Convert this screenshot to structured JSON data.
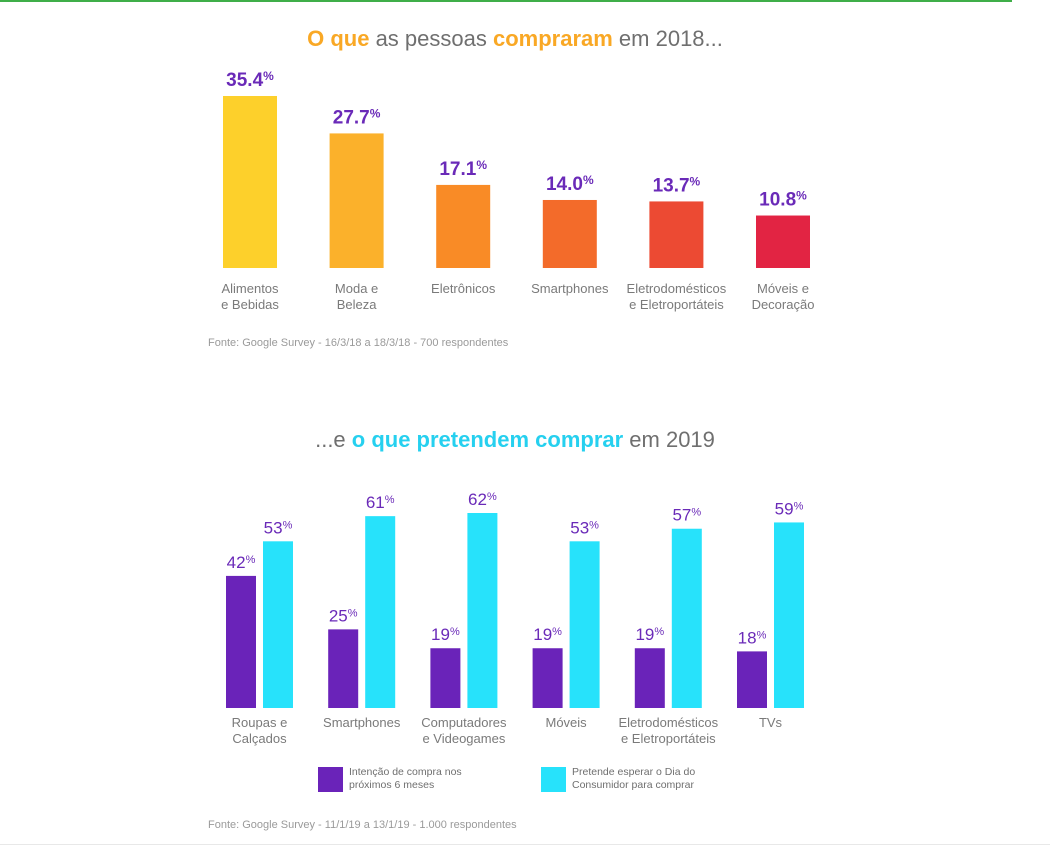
{
  "header": {
    "t1": {
      "p1": "O que",
      "p2": " as pessoas ",
      "p3": "compraram",
      "p4": " em 2018..."
    },
    "t2": {
      "p1": "...e ",
      "p2": "o que pretendem comprar",
      "p3": " em 2019"
    }
  },
  "sources": {
    "s1": "Fonte: Google Survey - 16/3/18 a 18/3/18 - 700 respondentes",
    "s2": "Fonte: Google Survey - 11/1/19 a 13/1/19 - 1.000 respondentes"
  },
  "colors": {
    "accent_2018": "#f9a825",
    "accent_2019": "#26d0ef",
    "label_purple": "#6a2ab8",
    "tick_gray": "#7a7a7a"
  },
  "legend": {
    "intencao": "Intenção de compra nos próximos 6 meses",
    "espera": "Pretende esperar o Dia do Consumidor para comprar"
  },
  "chart_data": [
    {
      "type": "bar",
      "title": "O que as pessoas compraram em 2018...",
      "categories": [
        [
          "Alimentos",
          "e Bebidas"
        ],
        [
          "Moda e",
          "Beleza"
        ],
        [
          "Eletrônicos"
        ],
        [
          "Smartphones"
        ],
        [
          "Eletrodomésticos",
          "e Eletroportáteis"
        ],
        [
          "Móveis e",
          "Decoração"
        ]
      ],
      "values": [
        35.4,
        27.7,
        17.1,
        14.0,
        13.7,
        10.8
      ],
      "value_labels": [
        "35.4",
        "27.7",
        "17.1",
        "14.0",
        "13.7",
        "10.8"
      ],
      "unit": "%",
      "bar_colors": [
        "#fdd02b",
        "#fbb12b",
        "#f98b26",
        "#f36b2a",
        "#ec4a33",
        "#e22443"
      ],
      "ylim": [
        0,
        35.4
      ],
      "grid": false,
      "legend": "none"
    },
    {
      "type": "bar",
      "title": "...e o que pretendem comprar em 2019",
      "categories": [
        [
          "Roupas e",
          "Calçados"
        ],
        [
          "Smartphones"
        ],
        [
          "Computadores",
          "e Videogames"
        ],
        [
          "Móveis"
        ],
        [
          "Eletrodomésticos",
          "e Eletroportáteis"
        ],
        [
          "TVs"
        ]
      ],
      "series": [
        {
          "name": "Intenção de compra nos próximos 6 meses",
          "values": [
            42,
            25,
            19,
            19,
            19,
            18
          ],
          "color": "#6a23b9"
        },
        {
          "name": "Pretende esperar o Dia do Consumidor para comprar",
          "values": [
            53,
            61,
            62,
            53,
            57,
            59
          ],
          "color": "#27e2fb"
        }
      ],
      "unit": "%",
      "ylim": [
        0,
        62
      ],
      "grid": false,
      "legend": "bottom"
    }
  ]
}
